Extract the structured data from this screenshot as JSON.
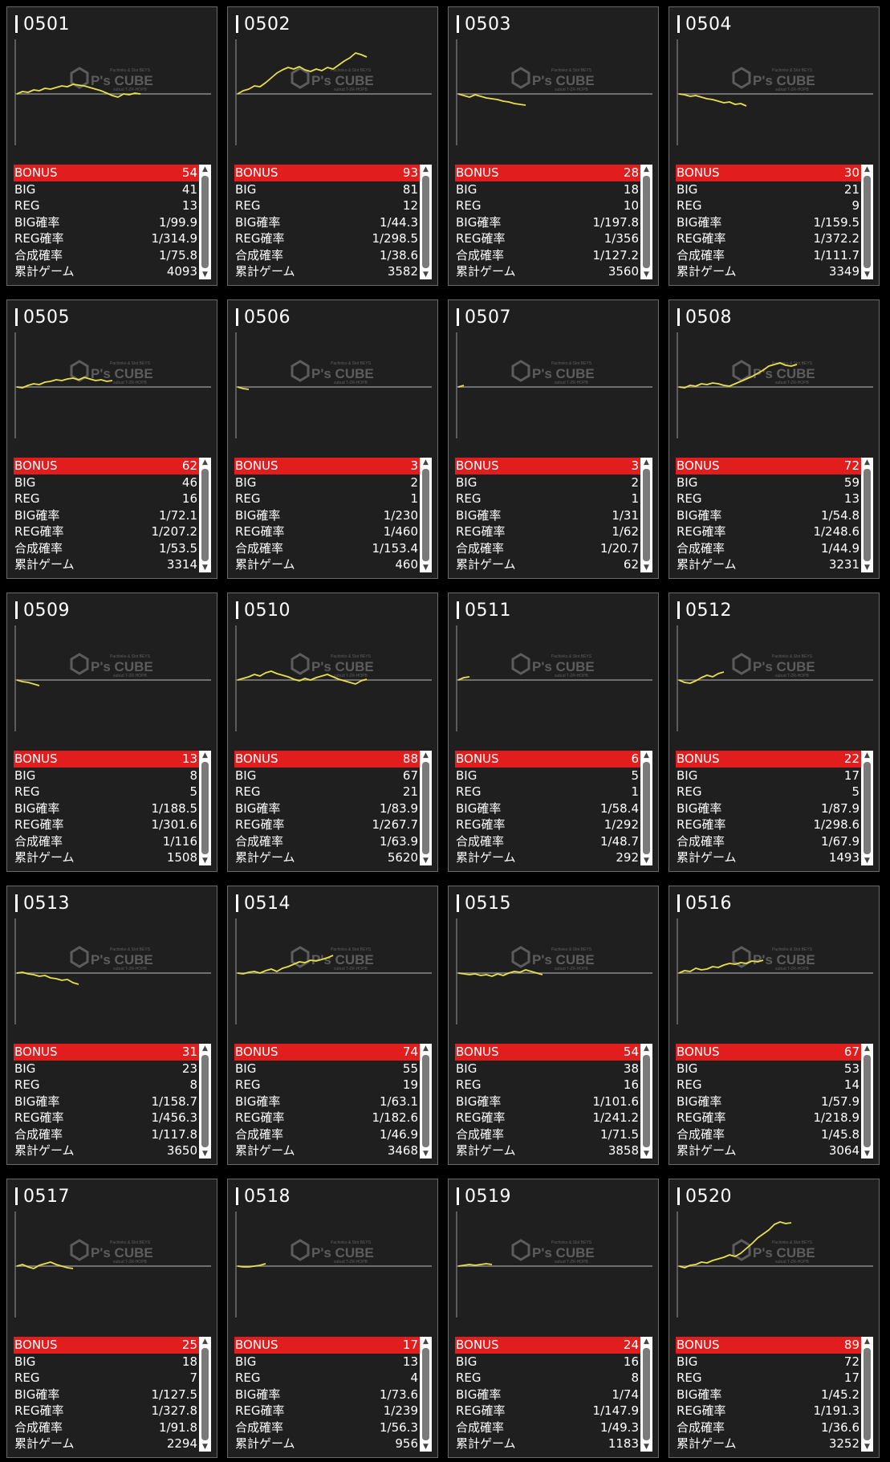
{
  "labels": {
    "bonus": "BONUS",
    "big": "BIG",
    "reg": "REG",
    "big_rate": "BIG確率",
    "reg_rate": "REG確率",
    "combined_rate": "合成確率",
    "total_games": "累計ゲーム"
  },
  "watermark": {
    "brand": "P's CUBE",
    "tagline": "Pachinko & Slot BEYS",
    "sub": "subud T-ZR-HOPB"
  },
  "colors": {
    "accent_red": "#e11d1d",
    "line_yellow": "#e8e04a",
    "card_bg": "#1f1f1f",
    "baseline": "#8a8a8a"
  },
  "machines": [
    {
      "id": "0501",
      "bonus": "54",
      "big": "41",
      "reg": "13",
      "big_rate": "1/99.9",
      "reg_rate": "1/314.9",
      "combined_rate": "1/75.8",
      "total_games": "4093",
      "trend": [
        0,
        3,
        2,
        5,
        4,
        7,
        6,
        8,
        10,
        9,
        12,
        11,
        10,
        8,
        6,
        4,
        1,
        -2,
        -4,
        0,
        -1,
        1,
        0
      ]
    },
    {
      "id": "0502",
      "bonus": "93",
      "big": "81",
      "reg": "12",
      "big_rate": "1/44.3",
      "reg_rate": "1/298.5",
      "combined_rate": "1/38.6",
      "total_games": "3582",
      "trend": [
        0,
        4,
        6,
        10,
        9,
        14,
        20,
        26,
        30,
        33,
        31,
        34,
        30,
        28,
        31,
        29,
        33,
        31,
        36,
        41,
        45,
        51,
        49,
        46
      ]
    },
    {
      "id": "0503",
      "bonus": "28",
      "big": "18",
      "reg": "10",
      "big_rate": "1/197.8",
      "reg_rate": "1/356",
      "combined_rate": "1/127.2",
      "total_games": "3560",
      "trend": [
        0,
        -2,
        -4,
        -1,
        -3,
        -5,
        -6,
        -7,
        -9,
        -10,
        -12,
        -13,
        -14
      ]
    },
    {
      "id": "0504",
      "bonus": "30",
      "big": "21",
      "reg": "9",
      "big_rate": "1/159.5",
      "reg_rate": "1/372.2",
      "combined_rate": "1/111.7",
      "total_games": "3349",
      "trend": [
        0,
        -1,
        -3,
        -2,
        -4,
        -6,
        -7,
        -9,
        -11,
        -10,
        -13,
        -12,
        -15
      ]
    },
    {
      "id": "0505",
      "bonus": "62",
      "big": "46",
      "reg": "16",
      "big_rate": "1/72.1",
      "reg_rate": "1/207.2",
      "combined_rate": "1/53.5",
      "total_games": "3314",
      "trend": [
        0,
        -1,
        2,
        4,
        3,
        6,
        7,
        9,
        8,
        10,
        11,
        9,
        12,
        10,
        8,
        9,
        7,
        8
      ]
    },
    {
      "id": "0506",
      "bonus": "3",
      "big": "2",
      "reg": "1",
      "big_rate": "1/230",
      "reg_rate": "1/460",
      "combined_rate": "1/153.4",
      "total_games": "460",
      "trend": [
        0,
        -2,
        -3
      ]
    },
    {
      "id": "0507",
      "bonus": "3",
      "big": "2",
      "reg": "1",
      "big_rate": "1/31",
      "reg_rate": "1/62",
      "combined_rate": "1/20.7",
      "total_games": "62",
      "trend": [
        0,
        2
      ]
    },
    {
      "id": "0508",
      "bonus": "72",
      "big": "59",
      "reg": "13",
      "big_rate": "1/54.8",
      "reg_rate": "1/248.6",
      "combined_rate": "1/44.9",
      "total_games": "3231",
      "trend": [
        0,
        -1,
        2,
        1,
        4,
        3,
        5,
        4,
        2,
        1,
        4,
        7,
        10,
        13,
        17,
        21,
        26,
        28,
        30,
        27,
        26,
        28
      ]
    },
    {
      "id": "0509",
      "bonus": "13",
      "big": "8",
      "reg": "5",
      "big_rate": "1/188.5",
      "reg_rate": "1/301.6",
      "combined_rate": "1/116",
      "total_games": "1508",
      "trend": [
        0,
        -2,
        -3,
        -5,
        -7
      ]
    },
    {
      "id": "0510",
      "bonus": "88",
      "big": "67",
      "reg": "21",
      "big_rate": "1/83.9",
      "reg_rate": "1/267.7",
      "combined_rate": "1/63.9",
      "total_games": "5620",
      "trend": [
        0,
        2,
        4,
        7,
        5,
        9,
        11,
        8,
        6,
        4,
        1,
        -1,
        2,
        0,
        3,
        5,
        7,
        4,
        1,
        -1,
        -3,
        -5,
        -1,
        1
      ]
    },
    {
      "id": "0511",
      "bonus": "6",
      "big": "5",
      "reg": "1",
      "big_rate": "1/58.4",
      "reg_rate": "1/292",
      "combined_rate": "1/48.7",
      "total_games": "292",
      "trend": [
        0,
        3,
        4
      ]
    },
    {
      "id": "0512",
      "bonus": "22",
      "big": "17",
      "reg": "5",
      "big_rate": "1/87.9",
      "reg_rate": "1/298.6",
      "combined_rate": "1/67.9",
      "total_games": "1493",
      "trend": [
        0,
        -3,
        -4,
        -1,
        3,
        6,
        4,
        8,
        10
      ]
    },
    {
      "id": "0513",
      "bonus": "31",
      "big": "23",
      "reg": "8",
      "big_rate": "1/158.7",
      "reg_rate": "1/456.3",
      "combined_rate": "1/117.8",
      "total_games": "3650",
      "trend": [
        0,
        1,
        -1,
        -2,
        -4,
        -3,
        -6,
        -7,
        -9,
        -8,
        -12,
        -14
      ]
    },
    {
      "id": "0514",
      "bonus": "74",
      "big": "55",
      "reg": "19",
      "big_rate": "1/63.1",
      "reg_rate": "1/182.6",
      "combined_rate": "1/46.9",
      "total_games": "3468",
      "trend": [
        0,
        -1,
        1,
        2,
        0,
        3,
        5,
        2,
        6,
        8,
        11,
        14,
        13,
        16,
        15,
        17,
        19,
        22
      ]
    },
    {
      "id": "0515",
      "bonus": "54",
      "big": "38",
      "reg": "16",
      "big_rate": "1/101.6",
      "reg_rate": "1/241.2",
      "combined_rate": "1/71.5",
      "total_games": "3858",
      "trend": [
        0,
        -1,
        -2,
        -1,
        -3,
        -2,
        -4,
        -1,
        -3,
        0,
        2,
        1,
        4,
        2,
        0,
        -2
      ]
    },
    {
      "id": "0516",
      "bonus": "67",
      "big": "53",
      "reg": "14",
      "big_rate": "1/57.9",
      "reg_rate": "1/218.9",
      "combined_rate": "1/45.8",
      "total_games": "3064",
      "trend": [
        0,
        3,
        2,
        6,
        4,
        5,
        8,
        7,
        10,
        12,
        11,
        13,
        12,
        15,
        14,
        16
      ]
    },
    {
      "id": "0517",
      "bonus": "25",
      "big": "18",
      "reg": "7",
      "big_rate": "1/127.5",
      "reg_rate": "1/327.8",
      "combined_rate": "1/91.8",
      "total_games": "2294",
      "trend": [
        0,
        2,
        -1,
        -3,
        1,
        3,
        5,
        2,
        0,
        -2,
        -3
      ]
    },
    {
      "id": "0518",
      "bonus": "17",
      "big": "13",
      "reg": "4",
      "big_rate": "1/73.6",
      "reg_rate": "1/239",
      "combined_rate": "1/56.3",
      "total_games": "956",
      "trend": [
        0,
        -1,
        -1,
        0,
        1,
        3
      ]
    },
    {
      "id": "0519",
      "bonus": "24",
      "big": "16",
      "reg": "8",
      "big_rate": "1/74",
      "reg_rate": "1/147.9",
      "combined_rate": "1/49.3",
      "total_games": "1183",
      "trend": [
        0,
        1,
        2,
        1,
        2,
        3,
        2
      ]
    },
    {
      "id": "0520",
      "bonus": "89",
      "big": "72",
      "reg": "17",
      "big_rate": "1/45.2",
      "reg_rate": "1/191.3",
      "combined_rate": "1/36.6",
      "total_games": "3252",
      "trend": [
        0,
        -2,
        1,
        2,
        5,
        4,
        7,
        9,
        11,
        14,
        12,
        16,
        22,
        28,
        35,
        40,
        45,
        52,
        55,
        53,
        54
      ]
    }
  ]
}
